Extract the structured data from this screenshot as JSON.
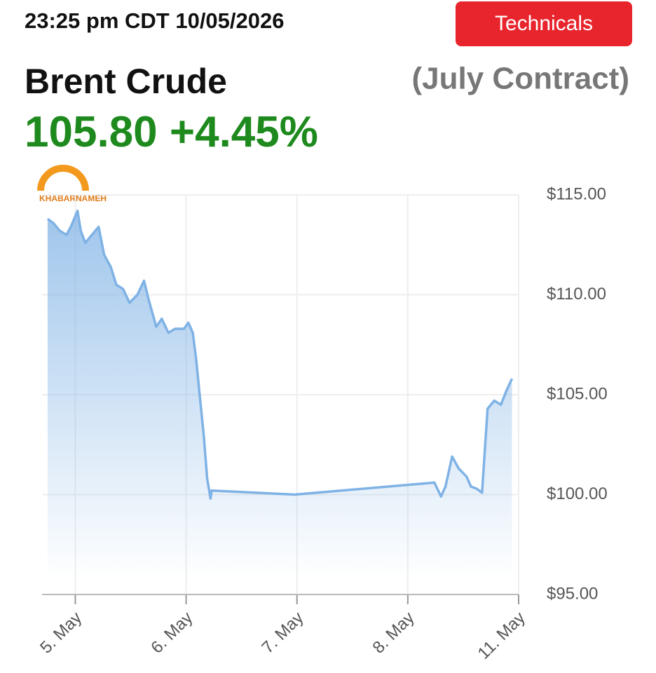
{
  "header": {
    "timestamp": "23:25 pm CDT 10/05/2026",
    "button": "Technicals",
    "instrument": "Brent Crude",
    "contract": "(July Contract)",
    "price": "105.80",
    "change": "+4.45%",
    "watermark": "KHABARNAMEH"
  },
  "chart_data": {
    "type": "area",
    "x": [
      -0.25,
      -0.2,
      -0.14,
      -0.08,
      -0.04,
      0.02,
      0.05,
      0.09,
      0.15,
      0.21,
      0.26,
      0.32,
      0.37,
      0.43,
      0.49,
      0.56,
      0.62,
      0.66,
      0.73,
      0.78,
      0.84,
      0.9,
      0.98,
      1.02,
      1.06,
      1.09,
      1.12,
      1.16,
      1.19,
      1.22,
      1.23,
      1.98,
      3.24,
      3.3,
      3.34,
      3.4,
      3.46,
      3.53,
      3.57,
      3.62,
      3.67,
      3.72,
      3.78,
      3.84,
      3.89,
      3.94
    ],
    "values": [
      113.8,
      113.6,
      113.2,
      113.0,
      113.4,
      114.2,
      113.2,
      112.6,
      113.0,
      113.4,
      112.0,
      111.4,
      110.5,
      110.3,
      109.6,
      110.0,
      110.7,
      109.8,
      108.4,
      108.8,
      108.1,
      108.3,
      108.3,
      108.6,
      108.1,
      106.8,
      105.1,
      102.9,
      100.8,
      99.8,
      100.2,
      100.0,
      100.6,
      99.9,
      100.4,
      101.9,
      101.3,
      100.9,
      100.4,
      100.3,
      100.1,
      104.3,
      104.7,
      104.5,
      105.2,
      105.8
    ],
    "color": "#7fb2e5",
    "xlim": [
      -0.3,
      4.0
    ],
    "xticks": [
      {
        "value": 0,
        "label": "5. May"
      },
      {
        "value": 1,
        "label": "6. May"
      },
      {
        "value": 2,
        "label": "7. May"
      },
      {
        "value": 3,
        "label": "8. May"
      },
      {
        "value": 4,
        "label": "11. May"
      }
    ],
    "ylim": [
      95,
      115
    ],
    "yticks": [
      {
        "value": 95,
        "label": "$95.00"
      },
      {
        "value": 100,
        "label": "$100.00"
      },
      {
        "value": 105,
        "label": "$105.00"
      },
      {
        "value": 110,
        "label": "$110.00"
      },
      {
        "value": 115,
        "label": "$115.00"
      }
    ],
    "grid": true
  }
}
